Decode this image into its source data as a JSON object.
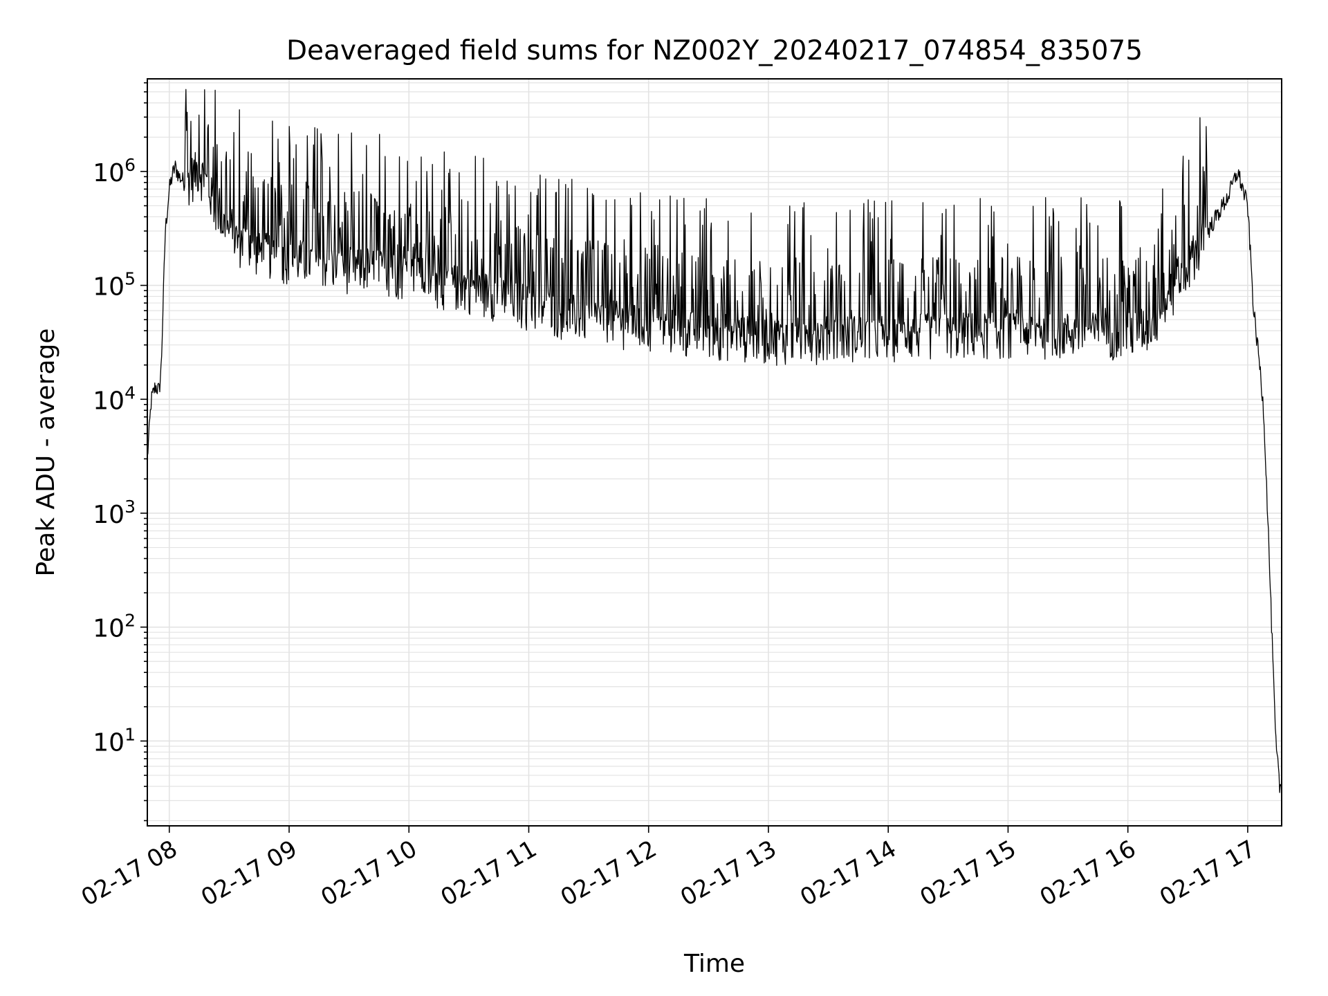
{
  "chart_data": {
    "type": "line",
    "title": "Deaveraged field sums for NZ002Y_20240217_074854_835075",
    "xlabel": "Time",
    "ylabel": "Peak ADU - average",
    "y_scale": "log",
    "grid": "on (major and minor, light gray)",
    "legend": "none",
    "line_color": "#000000",
    "xlim": [
      "2024-02-17 07:49",
      "2024-02-17 17:17"
    ],
    "ylim": [
      1.8,
      6500000
    ],
    "x_ticks": [
      "2024-02-17 08:00",
      "2024-02-17 09:00",
      "2024-02-17 10:00",
      "2024-02-17 11:00",
      "2024-02-17 12:00",
      "2024-02-17 13:00",
      "2024-02-17 14:00",
      "2024-02-17 15:00",
      "2024-02-17 16:00",
      "2024-02-17 17:00"
    ],
    "x_tick_labels": [
      "02-17 08",
      "02-17 09",
      "02-17 10",
      "02-17 11",
      "02-17 12",
      "02-17 13",
      "02-17 14",
      "02-17 15",
      "02-17 16",
      "02-17 17"
    ],
    "y_ticks": [
      10,
      100,
      1000,
      10000,
      100000,
      1000000
    ],
    "y_tick_mantissa": "10",
    "y_tick_exponents": [
      "1",
      "2",
      "3",
      "4",
      "5",
      "6"
    ],
    "series": [
      {
        "x": [
          "2024-02-17 07:49",
          "2024-02-17 07:51",
          "2024-02-17 07:53",
          "2024-02-17 07:55",
          "2024-02-17 07:56",
          "2024-02-17 07:58",
          "2024-02-17 08:00",
          "2024-02-17 08:02",
          "2024-02-17 08:03",
          "2024-02-17 08:05",
          "2024-02-17 08:08",
          "2024-02-17 08:10",
          "2024-02-17 08:15",
          "2024-02-17 08:20",
          "2024-02-17 08:25",
          "2024-02-17 08:30",
          "2024-02-17 08:35",
          "2024-02-17 08:40",
          "2024-02-17 08:45",
          "2024-02-17 08:50",
          "2024-02-17 09:00",
          "2024-02-17 09:10",
          "2024-02-17 09:20",
          "2024-02-17 09:30",
          "2024-02-17 09:40",
          "2024-02-17 09:50",
          "2024-02-17 10:00",
          "2024-02-17 10:15",
          "2024-02-17 10:30",
          "2024-02-17 10:45",
          "2024-02-17 11:00",
          "2024-02-17 11:15",
          "2024-02-17 11:30",
          "2024-02-17 11:45",
          "2024-02-17 12:00",
          "2024-02-17 12:15",
          "2024-02-17 12:30",
          "2024-02-17 12:45",
          "2024-02-17 13:00",
          "2024-02-17 13:15",
          "2024-02-17 13:30",
          "2024-02-17 13:45",
          "2024-02-17 14:00",
          "2024-02-17 14:15",
          "2024-02-17 14:30",
          "2024-02-17 14:45",
          "2024-02-17 15:00",
          "2024-02-17 15:15",
          "2024-02-17 15:30",
          "2024-02-17 15:45",
          "2024-02-17 16:00",
          "2024-02-17 16:10",
          "2024-02-17 16:20",
          "2024-02-17 16:30",
          "2024-02-17 16:40",
          "2024-02-17 16:50",
          "2024-02-17 16:55",
          "2024-02-17 17:00",
          "2024-02-17 17:03",
          "2024-02-17 17:06",
          "2024-02-17 17:08",
          "2024-02-17 17:10",
          "2024-02-17 17:12",
          "2024-02-17 17:14",
          "2024-02-17 17:16",
          "2024-02-17 17:17"
        ],
        "y": [
          3000,
          10000,
          13000,
          12000,
          20000,
          300000,
          700000,
          1000000,
          1100000,
          900000,
          800000,
          900000,
          1100000,
          700000,
          400000,
          300000,
          250000,
          250000,
          200000,
          200000,
          180000,
          170000,
          160000,
          150000,
          150000,
          140000,
          130000,
          110000,
          100000,
          85000,
          70000,
          60000,
          55000,
          50000,
          45000,
          42000,
          40000,
          38000,
          36000,
          36000,
          37000,
          38000,
          38000,
          39000,
          40000,
          40000,
          40000,
          40000,
          40000,
          40000,
          40000,
          45000,
          70000,
          150000,
          300000,
          600000,
          1000000,
          500000,
          60000,
          20000,
          8000,
          1000,
          100,
          10,
          4,
          4
        ]
      }
    ]
  }
}
